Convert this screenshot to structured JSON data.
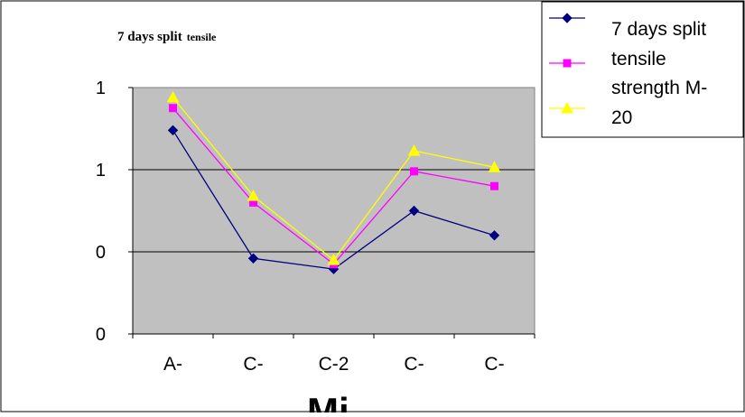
{
  "chart_data": {
    "type": "line",
    "title": {
      "main": "7 days split",
      "small": "tensile"
    },
    "xlabel": "Mi",
    "ylabel": "",
    "categories": [
      "A-",
      "C-",
      "C-2",
      "C-",
      "C-"
    ],
    "y_tick_labels": [
      "1",
      "1",
      "0",
      "0"
    ],
    "ylim": [
      0,
      3
    ],
    "grid": true,
    "legend_position": "top-right",
    "legend": {
      "entries": [
        "7 days split",
        "tensile",
        "strength M-",
        "20"
      ]
    },
    "series": [
      {
        "color": "#000080",
        "marker": "diamond",
        "values": [
          2.48,
          0.92,
          0.79,
          1.5,
          1.2
        ]
      },
      {
        "color": "#ff00ff",
        "marker": "square",
        "values": [
          2.75,
          1.6,
          0.85,
          1.98,
          1.8
        ]
      },
      {
        "color": "#ffff00",
        "marker": "triangle",
        "values": [
          2.88,
          1.68,
          0.9,
          2.23,
          2.03
        ]
      }
    ],
    "colors": {
      "plot_bg": "#c0c0c0",
      "gridline": "#000000"
    }
  }
}
